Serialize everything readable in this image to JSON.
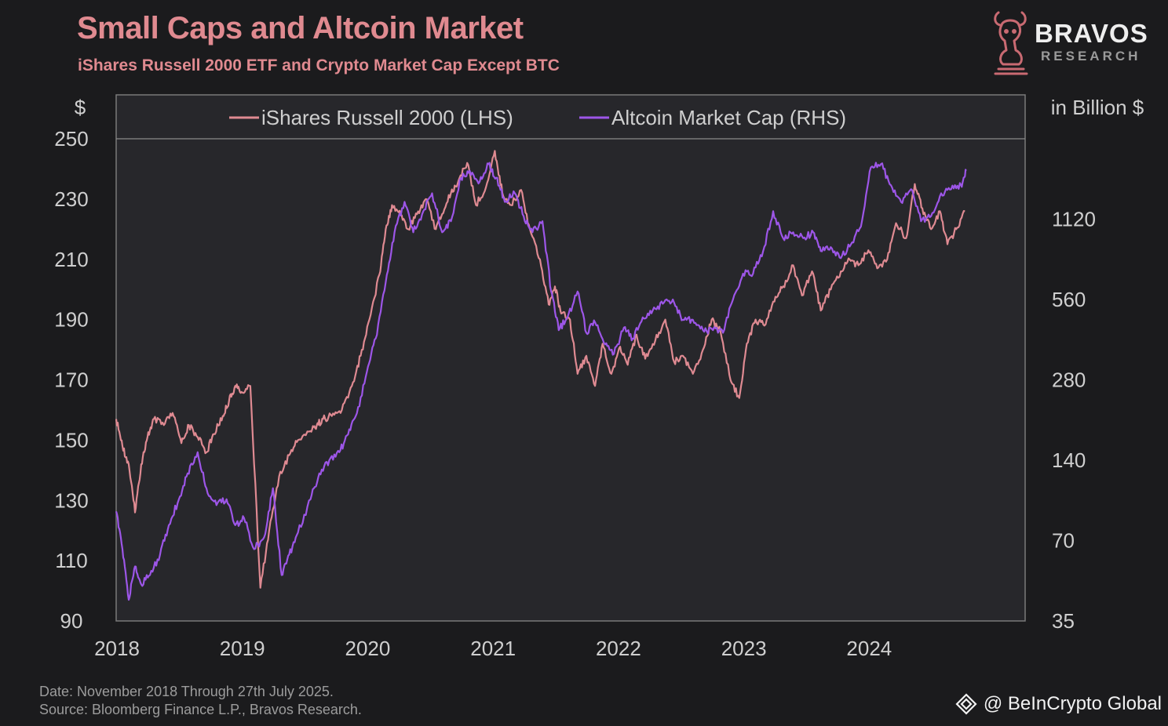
{
  "header": {
    "title": "Small Caps and Altcoin Market",
    "subtitle": "iShares Russell 2000 ETF and Crypto Market Cap Except BTC"
  },
  "logo": {
    "name": "BRAVOS",
    "sub": "RESEARCH",
    "accent": "#c96a72",
    "icon": "bull-knight-icon"
  },
  "footer": {
    "date_note": "Date: November 2018 Through 27th July 2025.",
    "source_note": "Source: Bloomberg Finance L.P., Bravos Research."
  },
  "watermark": {
    "text": "@ BeInCrypto Global",
    "icon": "beincrypto-diamond-icon"
  },
  "chart_data": {
    "type": "line",
    "ylabel_left": "$",
    "ylabel_right": "in Billion $",
    "yticks_left": [
      "250",
      "230",
      "210",
      "190",
      "170",
      "150",
      "130",
      "110",
      "90"
    ],
    "yticks_right": [
      "1120",
      "560",
      "280",
      "140",
      "70",
      "35"
    ],
    "xticks": [
      "2018",
      "2019",
      "2020",
      "2021",
      "2022",
      "2023",
      "2024"
    ],
    "x_range": [
      2018.0,
      2025.25
    ],
    "ylim_left": [
      90,
      250
    ],
    "ylim_right": [
      35,
      2240
    ],
    "right_scale": "log",
    "legend_position": "top",
    "grid": false,
    "series": [
      {
        "name": "iShares Russell 2000 (LHS)",
        "axis": "left",
        "color": "#df8a92",
        "x": [
          2018.0,
          2018.05,
          2018.1,
          2018.15,
          2018.2,
          2018.25,
          2018.3,
          2018.38,
          2018.45,
          2018.52,
          2018.58,
          2018.65,
          2018.72,
          2018.78,
          2018.85,
          2018.9,
          2018.95,
          2019.0,
          2019.07,
          2019.15,
          2019.22,
          2019.3,
          2019.38,
          2019.45,
          2019.55,
          2019.6,
          2019.65,
          2019.72,
          2019.8,
          2019.88,
          2019.95,
          2020.02,
          2020.1,
          2020.15,
          2020.2,
          2020.27,
          2020.33,
          2020.4,
          2020.47,
          2020.55,
          2020.6,
          2020.67,
          2020.73,
          2020.8,
          2020.87,
          2020.95,
          2021.02,
          2021.08,
          2021.15,
          2021.23,
          2021.3,
          2021.38,
          2021.45,
          2021.5,
          2021.55,
          2021.62,
          2021.68,
          2021.75,
          2021.82,
          2021.88,
          2021.95,
          2022.02,
          2022.08,
          2022.15,
          2022.22,
          2022.3,
          2022.38,
          2022.45,
          2022.52,
          2022.6,
          2022.68,
          2022.75,
          2022.82,
          2022.9,
          2022.97,
          2023.03,
          2023.1,
          2023.17,
          2023.25,
          2023.32,
          2023.4,
          2023.47,
          2023.55,
          2023.62,
          2023.7,
          2023.78,
          2023.85,
          2023.92,
          2024.0,
          2024.07,
          2024.15,
          2024.22,
          2024.3,
          2024.37,
          2024.43,
          2024.5,
          2024.57,
          2024.63,
          2024.7,
          2024.77
        ],
        "y": [
          157,
          148,
          142,
          126,
          142,
          151,
          157,
          155,
          159,
          149,
          155,
          151,
          146,
          152,
          158,
          163,
          168,
          166,
          168,
          101,
          120,
          138,
          145,
          150,
          153,
          155,
          157,
          158,
          160,
          168,
          178,
          190,
          205,
          220,
          228,
          225,
          220,
          225,
          230,
          220,
          225,
          232,
          236,
          242,
          228,
          234,
          246,
          232,
          228,
          233,
          220,
          210,
          195,
          201,
          192,
          190,
          172,
          178,
          168,
          182,
          172,
          181,
          175,
          185,
          177,
          183,
          190,
          176,
          178,
          172,
          180,
          190,
          186,
          170,
          164,
          182,
          190,
          188,
          196,
          201,
          208,
          198,
          206,
          193,
          200,
          206,
          210,
          208,
          213,
          207,
          210,
          222,
          217,
          235,
          227,
          220,
          226,
          215,
          220,
          226
        ],
        "values": [
          157,
          148,
          142,
          126,
          142,
          151,
          157,
          155,
          159,
          149,
          155,
          151,
          146,
          152,
          158,
          163,
          168,
          166,
          168,
          101,
          120,
          138,
          145,
          150,
          153,
          155,
          157,
          158,
          160,
          168,
          178,
          190,
          205,
          220,
          228,
          225,
          220,
          225,
          230,
          220,
          225,
          232,
          236,
          242,
          228,
          234,
          246,
          232,
          228,
          233,
          220,
          210,
          195,
          201,
          192,
          190,
          172,
          178,
          168,
          182,
          172,
          181,
          175,
          185,
          177,
          183,
          190,
          176,
          178,
          172,
          180,
          190,
          186,
          170,
          164,
          182,
          190,
          188,
          196,
          201,
          208,
          198,
          206,
          193,
          200,
          206,
          210,
          208,
          213,
          207,
          210,
          222,
          217,
          235,
          227,
          220,
          226,
          215,
          220,
          226
        ]
      },
      {
        "name": "Altcoin Market Cap (RHS)",
        "axis": "right",
        "color": "#9d56e8",
        "x": [
          2018.0,
          2018.05,
          2018.1,
          2018.15,
          2018.2,
          2018.27,
          2018.35,
          2018.42,
          2018.5,
          2018.57,
          2018.65,
          2018.72,
          2018.8,
          2018.88,
          2018.95,
          2019.02,
          2019.1,
          2019.18,
          2019.25,
          2019.32,
          2019.38,
          2019.45,
          2019.55,
          2019.62,
          2019.7,
          2019.78,
          2019.85,
          2019.92,
          2020.0,
          2020.07,
          2020.15,
          2020.22,
          2020.3,
          2020.37,
          2020.45,
          2020.52,
          2020.6,
          2020.67,
          2020.75,
          2020.82,
          2020.9,
          2020.97,
          2021.03,
          2021.1,
          2021.18,
          2021.25,
          2021.32,
          2021.4,
          2021.47,
          2021.53,
          2021.6,
          2021.68,
          2021.75,
          2021.82,
          2021.9,
          2021.97,
          2022.05,
          2022.12,
          2022.2,
          2022.28,
          2022.36,
          2022.44,
          2022.52,
          2022.6,
          2022.68,
          2022.76,
          2022.84,
          2022.92,
          2023.0,
          2023.08,
          2023.16,
          2023.24,
          2023.32,
          2023.4,
          2023.48,
          2023.56,
          2023.62,
          2023.7,
          2023.78,
          2023.86,
          2023.94,
          2024.02,
          2024.1,
          2024.18,
          2024.26,
          2024.34,
          2024.42,
          2024.5,
          2024.58,
          2024.66,
          2024.74,
          2024.78
        ],
        "y": [
          90,
          65,
          42,
          56,
          48,
          52,
          62,
          80,
          100,
          125,
          150,
          110,
          95,
          100,
          80,
          85,
          65,
          72,
          110,
          52,
          62,
          75,
          100,
          125,
          140,
          150,
          175,
          210,
          300,
          400,
          650,
          1000,
          1300,
          1000,
          1200,
          1400,
          1000,
          1100,
          1600,
          1700,
          1550,
          1800,
          1600,
          1300,
          1400,
          1150,
          1000,
          1100,
          600,
          430,
          480,
          600,
          420,
          460,
          380,
          350,
          440,
          400,
          480,
          510,
          540,
          560,
          470,
          470,
          430,
          430,
          420,
          560,
          700,
          700,
          850,
          1200,
          950,
          1000,
          950,
          1000,
          850,
          880,
          800,
          900,
          1050,
          1750,
          1800,
          1500,
          1300,
          1450,
          1100,
          1150,
          1400,
          1450,
          1500,
          1700
        ],
        "values": [
          90,
          65,
          42,
          56,
          48,
          52,
          62,
          80,
          100,
          125,
          150,
          110,
          95,
          100,
          80,
          85,
          65,
          72,
          110,
          52,
          62,
          75,
          100,
          125,
          140,
          150,
          175,
          210,
          300,
          400,
          650,
          1000,
          1300,
          1000,
          1200,
          1400,
          1000,
          1100,
          1600,
          1700,
          1550,
          1800,
          1600,
          1300,
          1400,
          1150,
          1000,
          1100,
          600,
          430,
          480,
          600,
          420,
          460,
          380,
          350,
          440,
          400,
          480,
          510,
          540,
          560,
          470,
          470,
          430,
          430,
          420,
          560,
          700,
          700,
          850,
          1200,
          950,
          1000,
          950,
          1000,
          850,
          880,
          800,
          900,
          1050,
          1750,
          1800,
          1500,
          1300,
          1450,
          1100,
          1150,
          1400,
          1450,
          1500,
          1700
        ]
      }
    ]
  }
}
